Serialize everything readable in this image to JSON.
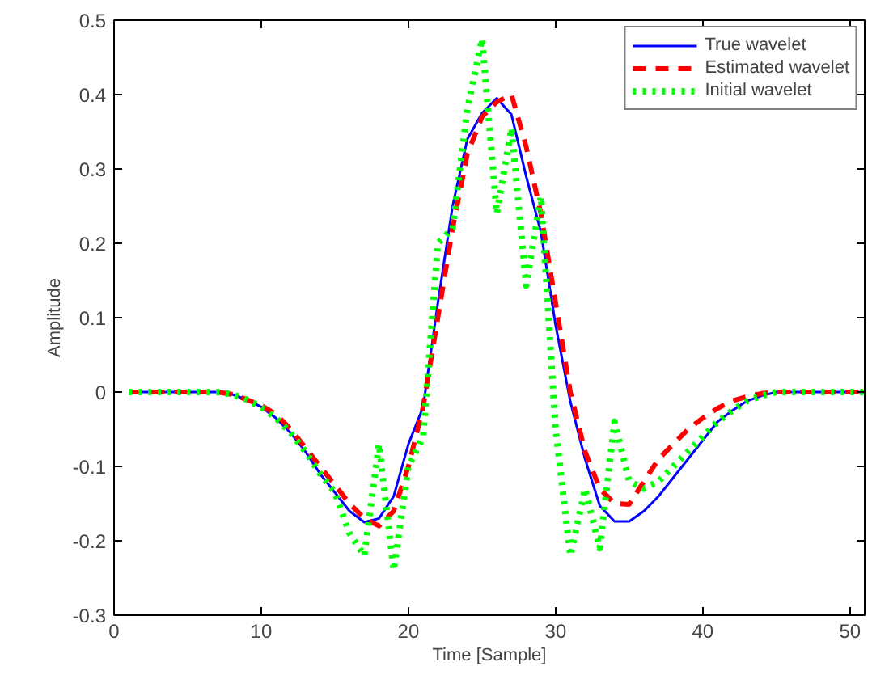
{
  "chart_data": {
    "type": "line",
    "xlabel": "Time [Sample]",
    "ylabel": "Amplitude",
    "x": [
      1,
      2,
      3,
      4,
      5,
      6,
      7,
      8,
      9,
      10,
      11,
      12,
      13,
      14,
      15,
      16,
      17,
      18,
      19,
      20,
      21,
      22,
      23,
      24,
      25,
      26,
      27,
      28,
      29,
      30,
      31,
      32,
      33,
      34,
      35,
      36,
      37,
      38,
      39,
      40,
      41,
      42,
      43,
      44,
      45,
      46,
      47,
      48,
      49,
      50,
      51
    ],
    "xlim": [
      0,
      51
    ],
    "ylim": [
      -0.3,
      0.5
    ],
    "xticks": [
      0,
      10,
      20,
      30,
      40,
      50
    ],
    "yticks": [
      -0.3,
      -0.2,
      -0.1,
      0,
      0.1,
      0.2,
      0.3,
      0.4,
      0.5
    ],
    "grid": false,
    "legend": "top right",
    "series": [
      {
        "name": "True wavelet",
        "color": "#0000ff",
        "line_style": "solid",
        "values": [
          0,
          0,
          0,
          0,
          0,
          0,
          0,
          -0.003,
          -0.01,
          -0.02,
          -0.035,
          -0.055,
          -0.08,
          -0.11,
          -0.135,
          -0.16,
          -0.175,
          -0.17,
          -0.14,
          -0.07,
          -0.02,
          0.12,
          0.25,
          0.34,
          0.375,
          0.395,
          0.373,
          0.29,
          0.215,
          0.09,
          -0.013,
          -0.09,
          -0.153,
          -0.174,
          -0.174,
          -0.16,
          -0.14,
          -0.115,
          -0.09,
          -0.065,
          -0.04,
          -0.025,
          -0.012,
          -0.005,
          0,
          0,
          0,
          0,
          0,
          0,
          0
        ]
      },
      {
        "name": "Estimated wavelet",
        "color": "#ff0000",
        "line_style": "dashed",
        "values": [
          0,
          0,
          0,
          0,
          0,
          0,
          0,
          -0.003,
          -0.01,
          -0.018,
          -0.03,
          -0.05,
          -0.075,
          -0.1,
          -0.125,
          -0.15,
          -0.17,
          -0.18,
          -0.16,
          -0.1,
          -0.02,
          0.1,
          0.22,
          0.32,
          0.37,
          0.39,
          0.4,
          0.33,
          0.24,
          0.12,
          0.0,
          -0.08,
          -0.13,
          -0.15,
          -0.151,
          -0.12,
          -0.09,
          -0.07,
          -0.05,
          -0.035,
          -0.022,
          -0.012,
          -0.006,
          -0.002,
          0,
          0,
          0,
          0,
          0,
          0,
          0
        ]
      },
      {
        "name": "Initial wavelet",
        "color": "#00ff00",
        "line_style": "dotted",
        "values": [
          0,
          0,
          0,
          0,
          0,
          0,
          0,
          -0.003,
          -0.01,
          -0.02,
          -0.035,
          -0.055,
          -0.08,
          -0.11,
          -0.135,
          -0.19,
          -0.22,
          -0.07,
          -0.24,
          -0.1,
          -0.06,
          0.2,
          0.22,
          0.38,
          0.475,
          0.24,
          0.355,
          0.143,
          0.263,
          -0.05,
          -0.22,
          -0.13,
          -0.21,
          -0.04,
          -0.12,
          -0.13,
          -0.12,
          -0.1,
          -0.08,
          -0.06,
          -0.04,
          -0.025,
          -0.012,
          -0.005,
          0,
          0,
          0,
          0,
          0,
          0,
          0
        ]
      }
    ]
  }
}
